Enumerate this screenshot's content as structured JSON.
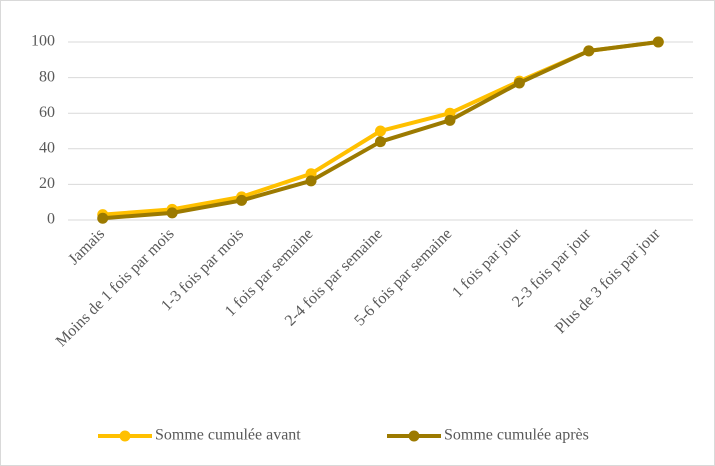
{
  "chart_data": {
    "type": "line",
    "categories": [
      "Jamais",
      "Moins de 1 fois par mois",
      "1-3 fois par mois",
      "1 fois par semaine",
      "2-4 fois par semaine",
      "5-6 fois par semaine",
      "1 fois par jour",
      "2-3 fois par jour",
      "Plus de 3 fois par jour"
    ],
    "series": [
      {
        "name": "Somme cumulée avant",
        "color": "#ffc000",
        "values": [
          3,
          6,
          13,
          26,
          50,
          60,
          78,
          95,
          100
        ]
      },
      {
        "name": "Somme cumulée après",
        "color": "#9c7a00",
        "values": [
          1,
          4,
          11,
          22,
          44,
          56,
          77,
          95,
          100
        ]
      }
    ],
    "ylim": [
      0,
      100
    ],
    "yticks": [
      0,
      20,
      40,
      60,
      80,
      100
    ],
    "grid": true,
    "legend": "bottom"
  }
}
